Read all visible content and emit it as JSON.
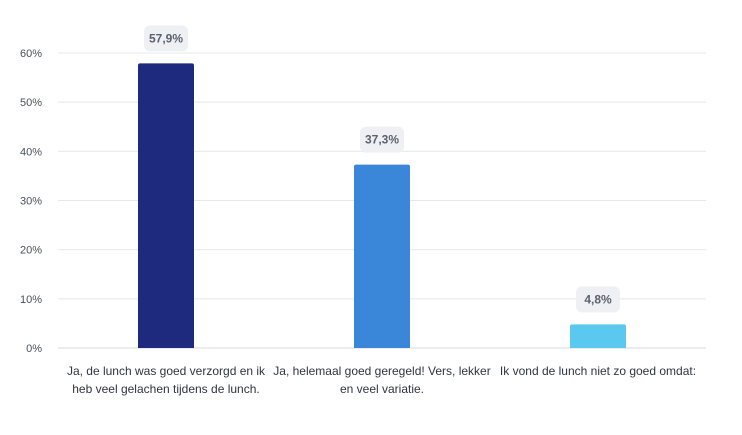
{
  "chart_data": {
    "type": "bar",
    "title": "",
    "xlabel": "",
    "ylabel": "",
    "ylim": [
      0,
      60
    ],
    "yticks": [
      0,
      10,
      20,
      30,
      40,
      50,
      60
    ],
    "ytick_labels": [
      "0%",
      "10%",
      "20%",
      "30%",
      "40%",
      "50%",
      "60%"
    ],
    "grid": true,
    "categories": [
      "Ja, de lunch was goed verzorgd en ik heb veel gelachen tijdens de lunch.",
      "Ja, helemaal goed geregeld! Vers, lekker en veel variatie.",
      "Ik vond de lunch niet zo goed omdat:"
    ],
    "values": [
      57.9,
      37.3,
      4.8
    ],
    "data_labels": [
      "57,9%",
      "37,3%",
      "4,8%"
    ],
    "colors": [
      "#1e2a7e",
      "#3a86d8",
      "#5bc8ef"
    ]
  }
}
